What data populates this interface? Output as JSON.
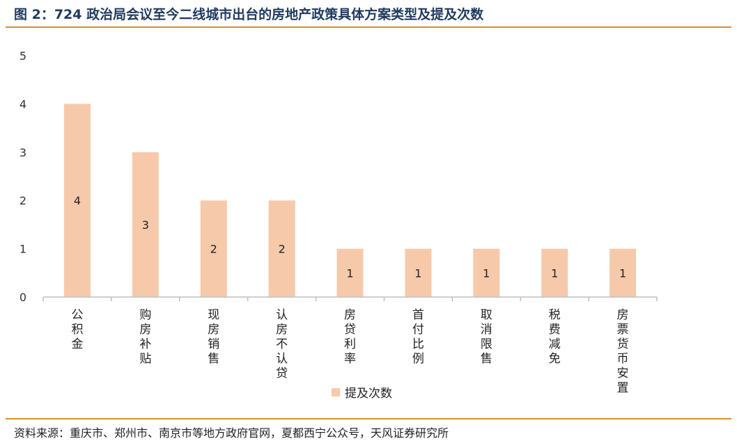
{
  "header": {
    "title": "图 2：724 政治局会议至今二线城市出台的房地产政策具体方案类型及提及次数"
  },
  "footer": {
    "source": "资料来源：重庆市、郑州市、南京市等地方政府官网，夏都西宁公众号，天风证券研究所"
  },
  "chart_data": {
    "type": "bar",
    "categories": [
      "公积金",
      "购房补贴",
      "现房销售",
      "认房不认贷",
      "房贷利率",
      "首付比例",
      "取消限售",
      "税费减免",
      "房票货币安置"
    ],
    "series": [
      {
        "name": "提及次数",
        "values": [
          4,
          3,
          2,
          2,
          1,
          1,
          1,
          1,
          1
        ]
      }
    ],
    "ylim": [
      0,
      5
    ],
    "yticks": [
      0,
      1,
      2,
      3,
      4,
      5
    ],
    "data_labels": true,
    "legend_position": "bottom",
    "grid": false,
    "bar_color": "#f6c9ab",
    "axis_color": "#bfbfbf"
  }
}
